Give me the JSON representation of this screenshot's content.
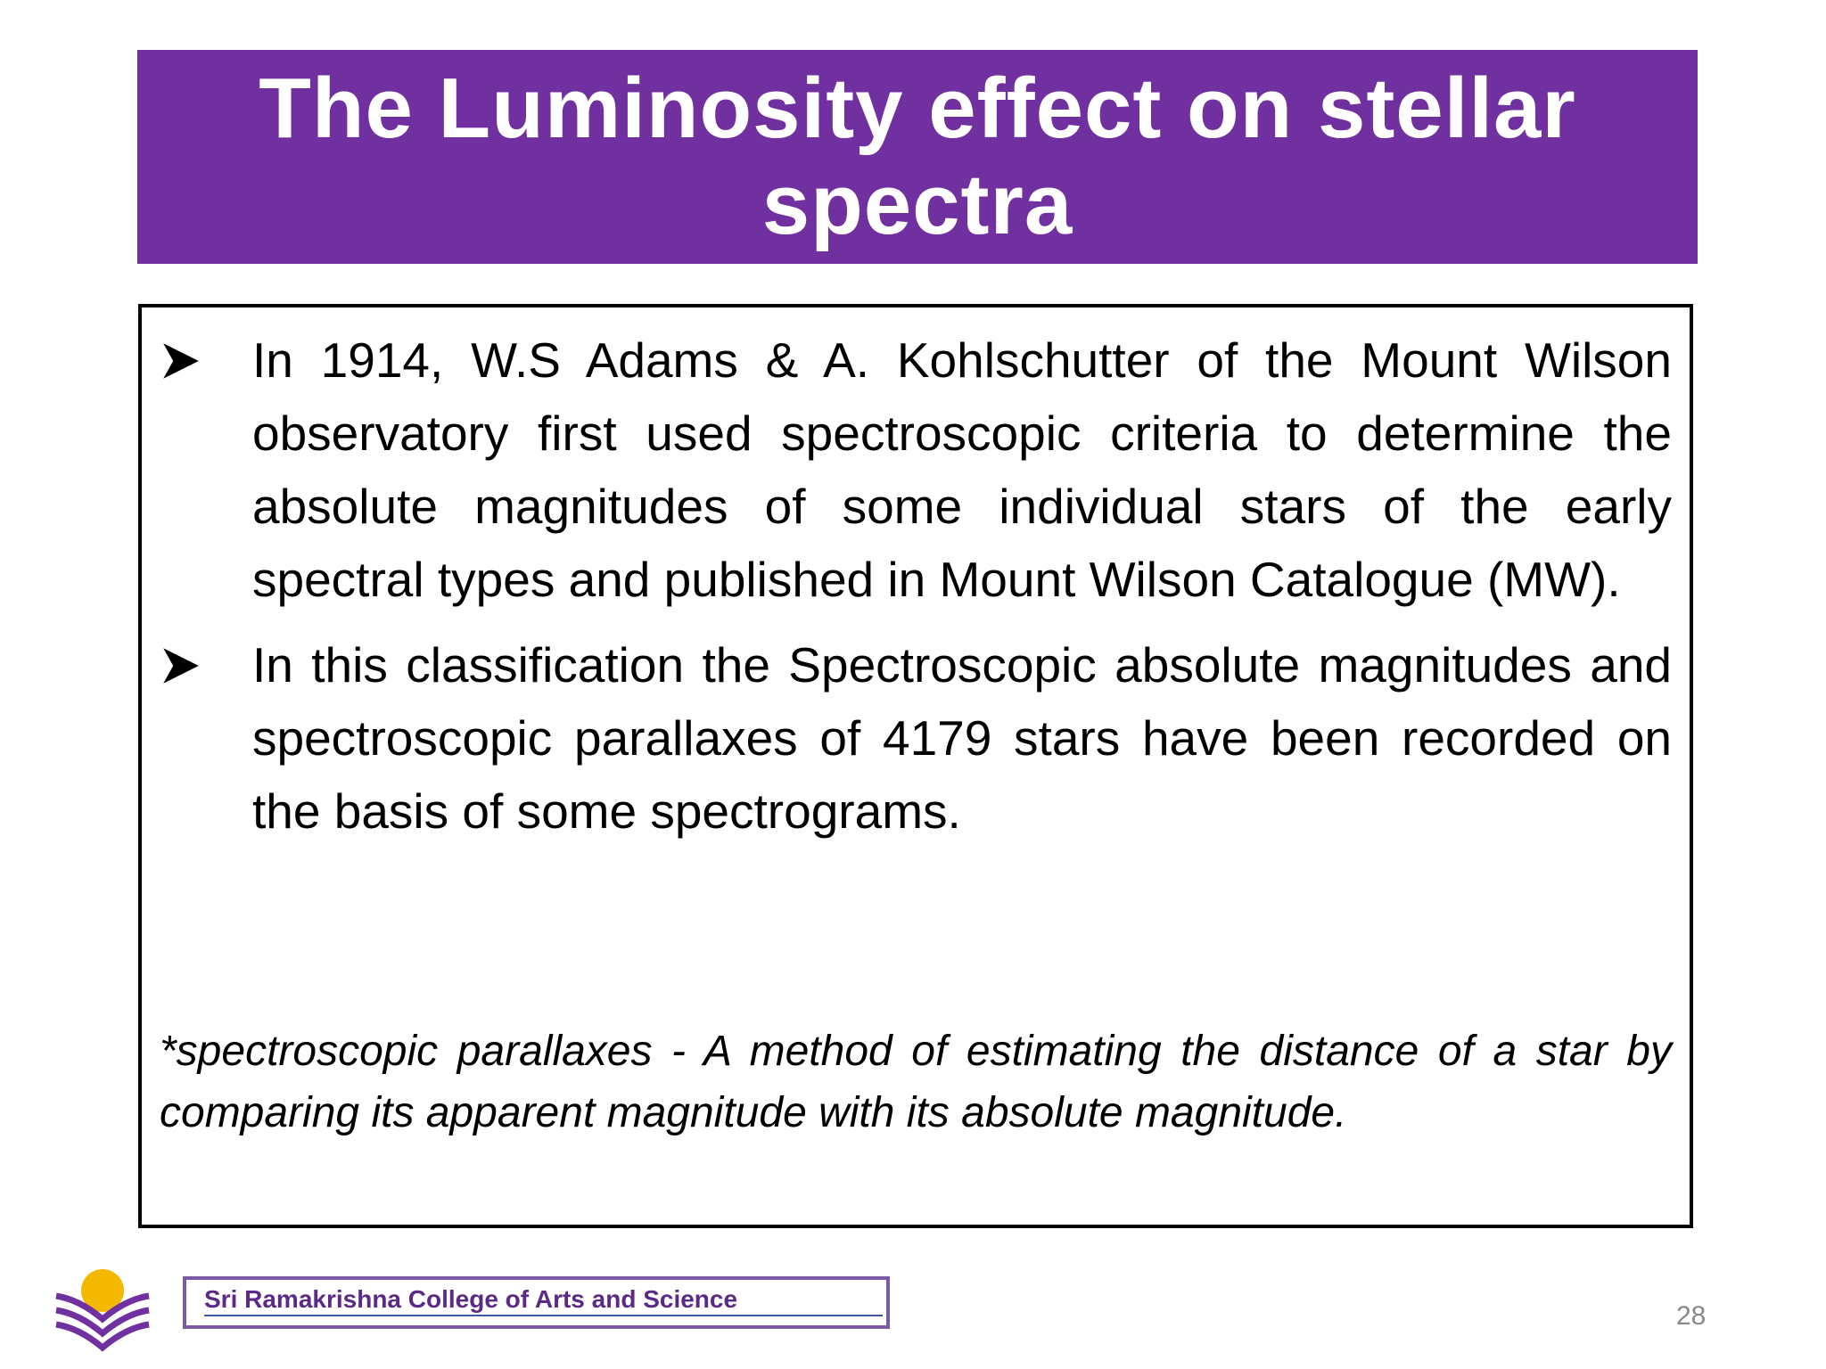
{
  "header": {
    "title": "The Luminosity effect on stellar spectra"
  },
  "bullets": [
    "In 1914, W.S Adams & A. Kohlschutter  of the Mount Wilson observatory first used spectroscopic criteria to determine the absolute magnitudes of some individual stars of the early spectral types and published in Mount Wilson Catalogue (MW).",
    "In this classification the Spectroscopic  absolute magnitudes and  spectroscopic parallaxes of 4179 stars have been recorded on the basis of some spectrograms."
  ],
  "note": "*spectroscopic parallaxes - A method of estimating the distance of a star by comparing its apparent magnitude with its absolute magnitude.",
  "footer": {
    "college": "Sri Ramakrishna College of Arts and Science",
    "page_number": "28"
  }
}
